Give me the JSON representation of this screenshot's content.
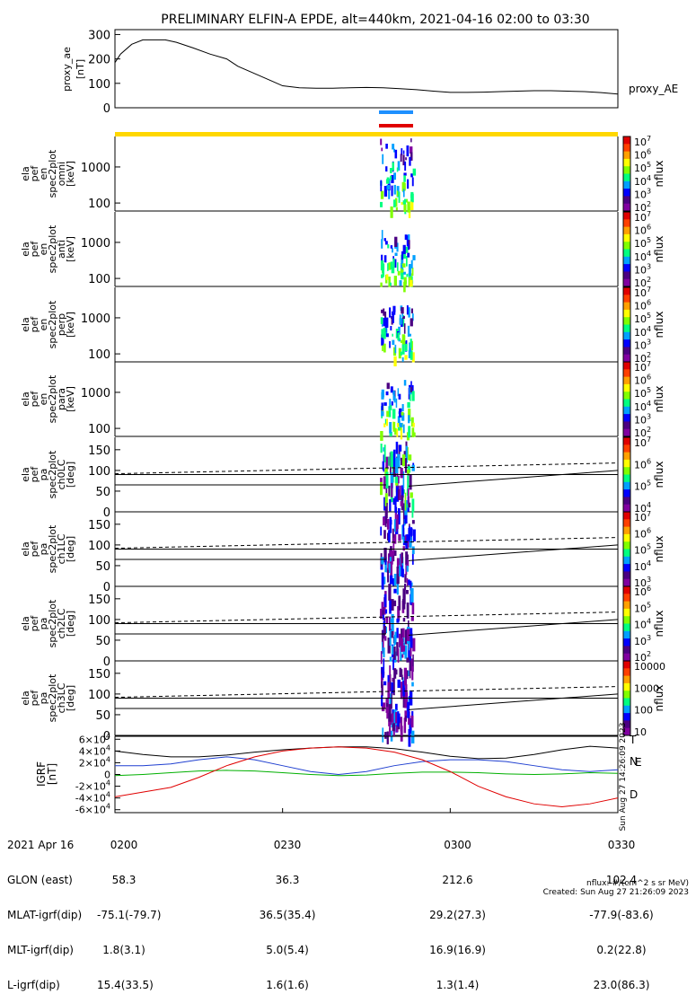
{
  "title": "PRELIMINARY ELFIN-A EPDE, alt=440km, 2021-04-16 02:00 to 03:30",
  "chart_data": [
    {
      "id": "proxy_ae",
      "type": "line",
      "ylabel": [
        "proxy_ae",
        "[nT]"
      ],
      "series_label": "proxy_AE",
      "ylim": [
        0,
        320
      ],
      "yticks": [
        "0",
        "100",
        "200",
        "300"
      ],
      "x_minutes": [
        0,
        1,
        3,
        5,
        7,
        9,
        11,
        14,
        17,
        20,
        22,
        25,
        28,
        30,
        33,
        36,
        39,
        42,
        45,
        48,
        51,
        54,
        57,
        60,
        63,
        66,
        69,
        72,
        75,
        78,
        81,
        84,
        87,
        90
      ],
      "values": [
        185,
        220,
        260,
        278,
        278,
        278,
        268,
        245,
        220,
        200,
        170,
        140,
        110,
        90,
        82,
        80,
        80,
        82,
        83,
        82,
        78,
        74,
        68,
        63,
        63,
        64,
        66,
        68,
        70,
        70,
        68,
        66,
        62,
        56
      ]
    },
    {
      "id": "spec_omni",
      "type": "heatmap",
      "ylabel": [
        "ela",
        "pef",
        "en",
        "spec2plot",
        "omni",
        "[keV]"
      ],
      "ylim": [
        60,
        7000
      ],
      "yscale": "log",
      "yticks": [
        "100",
        "1000"
      ],
      "colorbar": {
        "label": "nflux",
        "range": "10^2 - 10^7",
        "ticks": [
          "10^7",
          "10^6",
          "10^5",
          "10^4",
          "10^3",
          "10^2"
        ]
      }
    },
    {
      "id": "spec_anti",
      "type": "heatmap",
      "ylabel": [
        "ela",
        "pef",
        "en",
        "spec2plot",
        "anti",
        "[keV]"
      ],
      "ylim": [
        60,
        7000
      ],
      "yscale": "log",
      "yticks": [
        "100",
        "1000"
      ],
      "colorbar": {
        "label": "nflux",
        "range": "10^2 - 10^7",
        "ticks": [
          "10^7",
          "10^6",
          "10^5",
          "10^4",
          "10^3",
          "10^2"
        ]
      }
    },
    {
      "id": "spec_perp",
      "type": "heatmap",
      "ylabel": [
        "ela",
        "pef",
        "en",
        "spec2plot",
        "perp",
        "[keV]"
      ],
      "ylim": [
        60,
        7000
      ],
      "yscale": "log",
      "yticks": [
        "100",
        "1000"
      ],
      "colorbar": {
        "label": "nflux",
        "range": "10^2 - 10^7",
        "ticks": [
          "10^7",
          "10^6",
          "10^5",
          "10^4",
          "10^3",
          "10^2"
        ]
      }
    },
    {
      "id": "spec_para",
      "type": "heatmap",
      "ylabel": [
        "ela",
        "pef",
        "en",
        "spec2plot",
        "para",
        "[keV]"
      ],
      "ylim": [
        60,
        7000
      ],
      "yscale": "log",
      "yticks": [
        "100",
        "1000"
      ],
      "colorbar": {
        "label": "nflux",
        "range": "10^2 - 10^7",
        "ticks": [
          "10^7",
          "10^6",
          "10^5",
          "10^4",
          "10^3",
          "10^2"
        ]
      }
    },
    {
      "id": "pa_ch0",
      "type": "heatmap",
      "ylabel": [
        "ela",
        "pef",
        "pa",
        "spec2plot",
        "ch0LC",
        "[deg]"
      ],
      "ylim": [
        0,
        180
      ],
      "yticks": [
        "0",
        "50",
        "100",
        "150"
      ],
      "colorbar": {
        "label": "nflux",
        "ticks": [
          "10^7",
          "10^6",
          "10^5",
          "10^4"
        ]
      }
    },
    {
      "id": "pa_ch1",
      "type": "heatmap",
      "ylabel": [
        "ela",
        "pef",
        "pa",
        "spec2plot",
        "ch1LC",
        "[deg]"
      ],
      "ylim": [
        0,
        180
      ],
      "yticks": [
        "0",
        "50",
        "100",
        "150"
      ],
      "colorbar": {
        "label": "nflux",
        "ticks": [
          "10^7",
          "10^6",
          "10^5",
          "10^4",
          "10^3"
        ]
      }
    },
    {
      "id": "pa_ch2",
      "type": "heatmap",
      "ylabel": [
        "ela",
        "pef",
        "pa",
        "spec2plot",
        "ch2LC",
        "[deg]"
      ],
      "ylim": [
        0,
        180
      ],
      "yticks": [
        "0",
        "50",
        "100",
        "150"
      ],
      "colorbar": {
        "label": "nflux",
        "ticks": [
          "10^6",
          "10^5",
          "10^4",
          "10^3",
          "10^2"
        ]
      }
    },
    {
      "id": "pa_ch3",
      "type": "heatmap",
      "ylabel": [
        "ela",
        "pef",
        "pa",
        "spec2plot",
        "ch3LC",
        "[deg]"
      ],
      "ylim": [
        0,
        180
      ],
      "yticks": [
        "0",
        "50",
        "100",
        "150"
      ],
      "colorbar": {
        "label": "nflux",
        "ticks": [
          "10000",
          "1000",
          "100",
          "10"
        ]
      }
    },
    {
      "id": "igrf",
      "type": "line",
      "ylabel": [
        "IGRF",
        "[nT]"
      ],
      "ylim": [
        -65000,
        65000
      ],
      "yticks": [
        "6×10^4",
        "4×10^4",
        "2×10^4",
        "0",
        "−2×10^4",
        "−4×10^4",
        "−6×10^4"
      ],
      "legend": [
        "T",
        "N",
        "E",
        "D"
      ],
      "side_note": "Sun Aug 27 14:26:09 2023",
      "series": [
        {
          "name": "T",
          "color": "#000000",
          "x_minutes": [
            0,
            5,
            10,
            15,
            20,
            25,
            30,
            35,
            40,
            45,
            50,
            55,
            60,
            65,
            70,
            75,
            80,
            85,
            90
          ],
          "values": [
            40000,
            34000,
            30000,
            30000,
            33000,
            38000,
            42000,
            45000,
            47000,
            47000,
            44000,
            38000,
            31000,
            27000,
            28000,
            34000,
            42000,
            48000,
            45000
          ]
        },
        {
          "name": "N",
          "color": "#1f3fd0",
          "x_minutes": [
            0,
            5,
            10,
            15,
            20,
            25,
            30,
            35,
            40,
            45,
            50,
            55,
            60,
            65,
            70,
            75,
            80,
            85,
            90
          ],
          "values": [
            15000,
            15000,
            18000,
            25000,
            30000,
            25000,
            15000,
            5000,
            0,
            5000,
            15000,
            22000,
            25000,
            25000,
            22000,
            15000,
            8000,
            5000,
            8000
          ]
        },
        {
          "name": "E",
          "color": "#00b000",
          "x_minutes": [
            0,
            5,
            10,
            15,
            20,
            25,
            30,
            35,
            40,
            45,
            50,
            55,
            60,
            65,
            70,
            75,
            80,
            85,
            90
          ],
          "values": [
            -2000,
            0,
            3000,
            6000,
            7000,
            6000,
            3000,
            0,
            -2000,
            -1000,
            2000,
            4000,
            4000,
            3000,
            1000,
            0,
            1000,
            3000,
            2000
          ]
        },
        {
          "name": "D",
          "color": "#e00000",
          "x_minutes": [
            0,
            5,
            10,
            15,
            20,
            25,
            30,
            35,
            40,
            45,
            50,
            55,
            60,
            65,
            70,
            75,
            80,
            85,
            90
          ],
          "values": [
            -38000,
            -30000,
            -22000,
            -5000,
            15000,
            30000,
            40000,
            45000,
            47000,
            45000,
            38000,
            25000,
            5000,
            -20000,
            -38000,
            -50000,
            -55000,
            -50000,
            -40000
          ]
        }
      ]
    }
  ],
  "orbit_bars": [
    {
      "color": "#1e90ff"
    },
    {
      "color": "#e00000"
    },
    {
      "color": "#ffd700"
    }
  ],
  "colorbar_colors": [
    "#8000a0",
    "#4b0082",
    "#0000ff",
    "#00a0ff",
    "#00ff80",
    "#80ff00",
    "#ffff00",
    "#ffa000",
    "#ff4000",
    "#e00000"
  ],
  "footer": {
    "row_labels": [
      "2021 Apr 16",
      "GLON (east)",
      "MLAT-igrf(dip)",
      "MLT-igrf(dip)",
      "L-igrf(dip)"
    ],
    "columns": [
      {
        "time": "0200",
        "glon": "58.3",
        "mlat": "-75.1(-79.7)",
        "mlt": "1.8(3.1)",
        "l": "15.4(33.5)"
      },
      {
        "time": "0230",
        "glon": "36.3",
        "mlat": "36.5(35.4)",
        "mlt": "5.0(5.4)",
        "l": "1.6(1.6)"
      },
      {
        "time": "0300",
        "glon": "212.6",
        "mlat": "29.2(27.3)",
        "mlt": "16.9(16.9)",
        "l": "1.3(1.4)"
      },
      {
        "time": "0330",
        "glon": "102.4",
        "mlat": "-77.9(-83.6)",
        "mlt": "0.2(22.8)",
        "l": "23.0(86.3)"
      }
    ],
    "units_note": "nflux: #/(cm^2 s sr MeV)",
    "created": "Created: Sun Aug 27 21:26:09 2023"
  }
}
